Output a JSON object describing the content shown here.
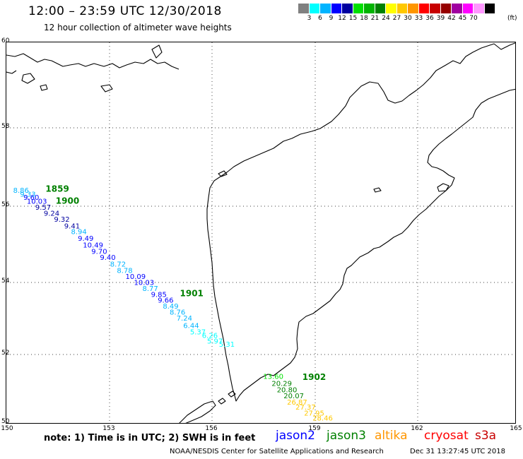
{
  "header": {
    "title": "12:00 – 23:59 UTC 12/30/2018",
    "subtitle": "12 hour collection of altimeter wave heights"
  },
  "legend": {
    "colors": [
      "#808080",
      "#00ffff",
      "#00b4ff",
      "#0000ff",
      "#0000a0",
      "#00e000",
      "#00b400",
      "#008000",
      "#ffff00",
      "#ffc800",
      "#ff9600",
      "#ff0000",
      "#c80000",
      "#960000",
      "#a000a0",
      "#ff00ff",
      "#ff96ff",
      "#000000"
    ],
    "labels": [
      "3",
      "6",
      "9",
      "12",
      "15",
      "18",
      "21",
      "24",
      "27",
      "30",
      "33",
      "36",
      "39",
      "42",
      "45",
      "70"
    ],
    "unit": "(ft)"
  },
  "axes": {
    "y_ticks": [
      "60",
      "58",
      "56",
      "54",
      "52",
      "50"
    ],
    "x_ticks": [
      "150",
      "153",
      "156",
      "159",
      "162",
      "165"
    ]
  },
  "map": {
    "time_labels": [
      {
        "text": "1859",
        "color": "#008000",
        "lon": 151.15,
        "lat": 56.37
      },
      {
        "text": "1900",
        "color": "#008000",
        "lon": 151.45,
        "lat": 56.06
      },
      {
        "text": "1901",
        "color": "#008000",
        "lon": 155.1,
        "lat": 53.62
      },
      {
        "text": "1902",
        "color": "#008000",
        "lon": 158.7,
        "lat": 51.27
      }
    ],
    "swh_points": [
      {
        "text": "8.86",
        "color": "#00b4ff",
        "lon": 150.2,
        "lat": 56.34
      },
      {
        "text": "9.33",
        "color": "#00b4ff",
        "lon": 150.4,
        "lat": 56.24
      },
      {
        "text": "9.60",
        "color": "#0000ff",
        "lon": 150.5,
        "lat": 56.16
      },
      {
        "text": "10.03",
        "color": "#0000ff",
        "lon": 150.6,
        "lat": 56.06
      },
      {
        "text": "9.57",
        "color": "#0000a0",
        "lon": 150.85,
        "lat": 55.91
      },
      {
        "text": "9.24",
        "color": "#0000a0",
        "lon": 151.1,
        "lat": 55.75
      },
      {
        "text": "9.32",
        "color": "#0000a0",
        "lon": 151.4,
        "lat": 55.59
      },
      {
        "text": "9.41",
        "color": "#0000a0",
        "lon": 151.7,
        "lat": 55.42
      },
      {
        "text": "8.94",
        "color": "#00b4ff",
        "lon": 151.9,
        "lat": 55.27
      },
      {
        "text": "9.49",
        "color": "#0000ff",
        "lon": 152.1,
        "lat": 55.09
      },
      {
        "text": "10.49",
        "color": "#0000ff",
        "lon": 152.25,
        "lat": 54.92
      },
      {
        "text": "9.70",
        "color": "#0000ff",
        "lon": 152.5,
        "lat": 54.75
      },
      {
        "text": "9.40",
        "color": "#0000ff",
        "lon": 152.75,
        "lat": 54.59
      },
      {
        "text": "8.72",
        "color": "#00b4ff",
        "lon": 153.05,
        "lat": 54.42
      },
      {
        "text": "8.78",
        "color": "#00b4ff",
        "lon": 153.25,
        "lat": 54.25
      },
      {
        "text": "10.09",
        "color": "#0000ff",
        "lon": 153.5,
        "lat": 54.09
      },
      {
        "text": "10.03",
        "color": "#0000ff",
        "lon": 153.75,
        "lat": 53.93
      },
      {
        "text": "8.77",
        "color": "#00b4ff",
        "lon": 154.0,
        "lat": 53.76
      },
      {
        "text": "9.85",
        "color": "#0000ff",
        "lon": 154.25,
        "lat": 53.6
      },
      {
        "text": "9.66",
        "color": "#0000ff",
        "lon": 154.45,
        "lat": 53.44
      },
      {
        "text": "8.49",
        "color": "#00b4ff",
        "lon": 154.6,
        "lat": 53.27
      },
      {
        "text": "8.76",
        "color": "#00b4ff",
        "lon": 154.8,
        "lat": 53.11
      },
      {
        "text": "7.24",
        "color": "#00b4ff",
        "lon": 155.0,
        "lat": 52.94
      },
      {
        "text": "6.44",
        "color": "#00b4ff",
        "lon": 155.2,
        "lat": 52.74
      },
      {
        "text": "5.37",
        "color": "#00ffff",
        "lon": 155.4,
        "lat": 52.56
      },
      {
        "text": "6.26",
        "color": "#00ffff",
        "lon": 155.75,
        "lat": 52.46
      },
      {
        "text": "5.97",
        "color": "#00ffff",
        "lon": 155.9,
        "lat": 52.3
      },
      {
        "text": "5.31",
        "color": "#00ffff",
        "lon": 156.25,
        "lat": 52.22
      },
      {
        "text": "13.60",
        "color": "#00e000",
        "lon": 157.55,
        "lat": 51.3
      },
      {
        "text": "20.29",
        "color": "#008000",
        "lon": 157.8,
        "lat": 51.1
      },
      {
        "text": "20.80",
        "color": "#008000",
        "lon": 157.95,
        "lat": 50.92
      },
      {
        "text": "20.07",
        "color": "#008000",
        "lon": 158.15,
        "lat": 50.75
      },
      {
        "text": "26.87",
        "color": "#ffc800",
        "lon": 158.25,
        "lat": 50.57
      },
      {
        "text": "27.37",
        "color": "#ffc800",
        "lon": 158.5,
        "lat": 50.42
      },
      {
        "text": "27.95",
        "color": "#ffc800",
        "lon": 158.75,
        "lat": 50.25
      },
      {
        "text": "28.46",
        "color": "#ffc800",
        "lon": 159.0,
        "lat": 50.11
      }
    ]
  },
  "footer": {
    "note": "note:  1) Time is in UTC;  2) SWH is in feet",
    "satellites": [
      {
        "name": "jason2",
        "color": "#0000ff"
      },
      {
        "name": "jason3",
        "color": "#008000"
      },
      {
        "name": "altika",
        "color": "#ff9600"
      },
      {
        "name": "cryosat",
        "color": "#ff0000"
      },
      {
        "name": "s3a",
        "color": "#c80000"
      }
    ],
    "credit": "NOAA/NESDIS Center for Satellite Applications and Research",
    "timestamp": "Dec 31 13:27:45 UTC 2018"
  }
}
